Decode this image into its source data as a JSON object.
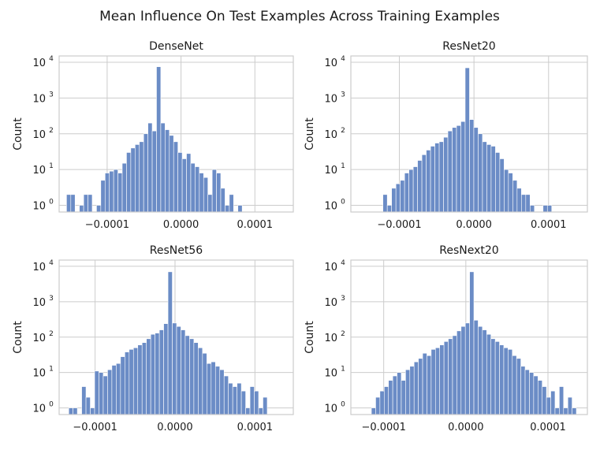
{
  "suptitle": "Mean Influence On Test Examples Across Training Examples",
  "chart_data": [
    {
      "type": "bar",
      "title": "DenseNet",
      "ylabel": "Count",
      "yscale": "log",
      "ylim": [
        0.65,
        15000
      ],
      "xlim": [
        -0.000165,
        0.000152
      ],
      "xticks": [
        -0.0001,
        0.0,
        0.0001
      ],
      "xtick_labels": [
        "−0.0001",
        "0.0000",
        "0.0001"
      ],
      "yticks": [
        1,
        10,
        100,
        1000,
        10000
      ],
      "yticks_exp": [
        "0",
        "1",
        "2",
        "3",
        "4"
      ],
      "bin_start": -0.000155,
      "bin_width": 5.8e-06,
      "counts": [
        2,
        2,
        0,
        1,
        2,
        2,
        0,
        1,
        5,
        8,
        9,
        10,
        8,
        15,
        30,
        40,
        50,
        60,
        100,
        200,
        120,
        7500,
        200,
        130,
        90,
        60,
        30,
        20,
        28,
        15,
        12,
        8,
        6,
        2,
        10,
        8,
        3,
        1,
        2,
        0,
        1
      ]
    },
    {
      "type": "bar",
      "title": "ResNet20",
      "ylabel": "Count",
      "yscale": "log",
      "ylim": [
        0.65,
        15000
      ],
      "xlim": [
        -0.000165,
        0.000152
      ],
      "xticks": [
        -0.0001,
        0.0,
        0.0001
      ],
      "xtick_labels": [
        "−0.0001",
        "0.0000",
        "0.0001"
      ],
      "yticks": [
        1,
        10,
        100,
        1000,
        10000
      ],
      "yticks_exp": [
        "0",
        "1",
        "2",
        "3",
        "4"
      ],
      "bin_start": -0.000122,
      "bin_width": 5.8e-06,
      "counts": [
        2,
        1,
        3,
        4,
        5,
        8,
        10,
        12,
        18,
        26,
        35,
        45,
        55,
        60,
        80,
        120,
        150,
        170,
        220,
        7000,
        250,
        150,
        100,
        60,
        50,
        45,
        30,
        20,
        10,
        8,
        5,
        3,
        2,
        2,
        1,
        0,
        0,
        1,
        1
      ]
    },
    {
      "type": "bar",
      "title": "ResNet56",
      "ylabel": "Count",
      "yscale": "log",
      "ylim": [
        0.65,
        15000
      ],
      "xlim": [
        -0.000145,
        0.000148
      ],
      "xticks": [
        -0.0001,
        0.0,
        0.0001
      ],
      "xtick_labels": [
        "−0.0001",
        "0.0000",
        "0.0001"
      ],
      "yticks": [
        1,
        10,
        100,
        1000,
        10000
      ],
      "yticks_exp": [
        "0",
        "1",
        "2",
        "3",
        "4"
      ],
      "bin_start": -0.000133,
      "bin_width": 5.4e-06,
      "counts": [
        1,
        1,
        0,
        4,
        2,
        1,
        11,
        10,
        8,
        12,
        16,
        18,
        28,
        38,
        45,
        50,
        60,
        70,
        90,
        120,
        130,
        160,
        240,
        7000,
        250,
        200,
        160,
        110,
        90,
        70,
        50,
        35,
        18,
        20,
        15,
        12,
        8,
        5,
        4,
        5,
        3,
        1,
        4,
        3,
        1,
        2
      ]
    },
    {
      "type": "bar",
      "title": "ResNext20",
      "ylabel": "Count",
      "yscale": "log",
      "ylim": [
        0.65,
        15000
      ],
      "xlim": [
        -0.00014,
        0.000148
      ],
      "xticks": [
        -0.0001,
        0.0,
        0.0001
      ],
      "xtick_labels": [
        "−0.0001",
        "0.0000",
        "0.0001"
      ],
      "yticks": [
        1,
        10,
        100,
        1000,
        10000
      ],
      "yticks_exp": [
        "0",
        "1",
        "2",
        "3",
        "4"
      ],
      "bin_start": -0.000115,
      "bin_width": 5.2e-06,
      "counts": [
        1,
        2,
        3,
        4,
        6,
        8,
        10,
        6,
        12,
        15,
        20,
        25,
        35,
        30,
        45,
        50,
        60,
        75,
        90,
        110,
        150,
        200,
        250,
        7000,
        300,
        200,
        160,
        120,
        90,
        75,
        60,
        50,
        45,
        30,
        25,
        15,
        12,
        10,
        8,
        6,
        4,
        2,
        3,
        1,
        4,
        1,
        2,
        1
      ]
    }
  ]
}
